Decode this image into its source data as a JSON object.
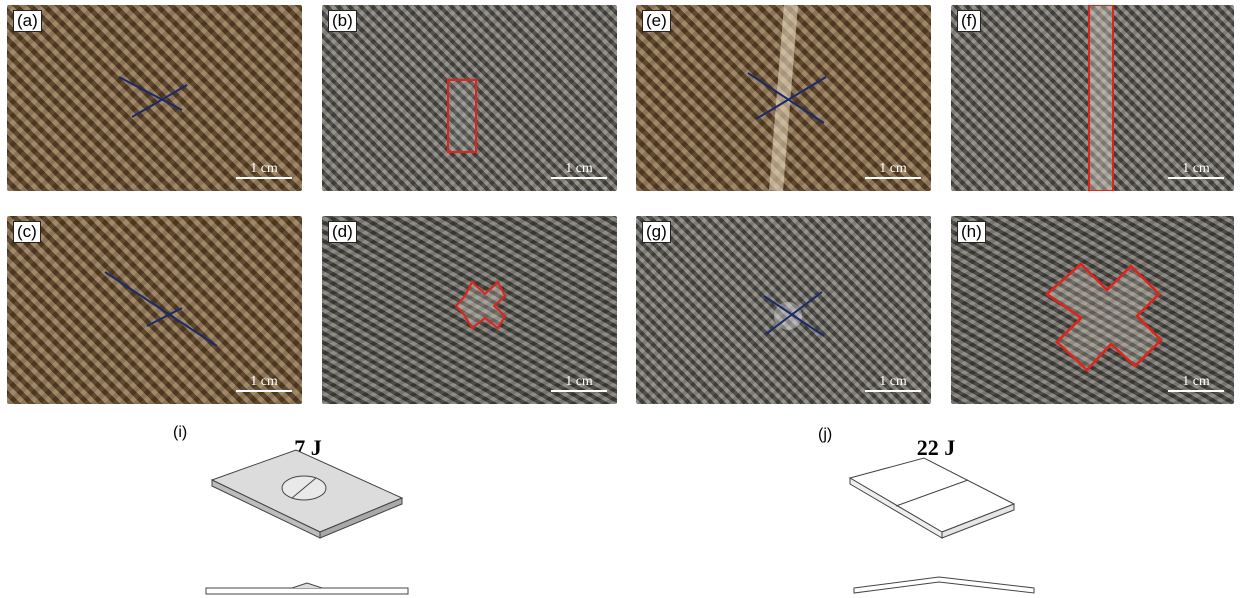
{
  "panels": [
    {
      "id": "a",
      "label": "(a)",
      "scale": "1 cm"
    },
    {
      "id": "b",
      "label": "(b)",
      "scale": "1 cm"
    },
    {
      "id": "e",
      "label": "(e)",
      "scale": "1 cm"
    },
    {
      "id": "f",
      "label": "(f)",
      "scale": "1 cm"
    },
    {
      "id": "c",
      "label": "(c)",
      "scale": "1 cm"
    },
    {
      "id": "d",
      "label": "(d)",
      "scale": "1 cm"
    },
    {
      "id": "g",
      "label": "(g)",
      "scale": "1 cm"
    },
    {
      "id": "h",
      "label": "(h)",
      "scale": "1 cm"
    }
  ],
  "models": [
    {
      "id": "i",
      "label": "(i)",
      "energy": "7 J"
    },
    {
      "id": "j",
      "label": "(j)",
      "energy": "22 J"
    }
  ],
  "colors": {
    "marker_blue": "#1b2a6b",
    "damage_red": "#e0231b"
  }
}
